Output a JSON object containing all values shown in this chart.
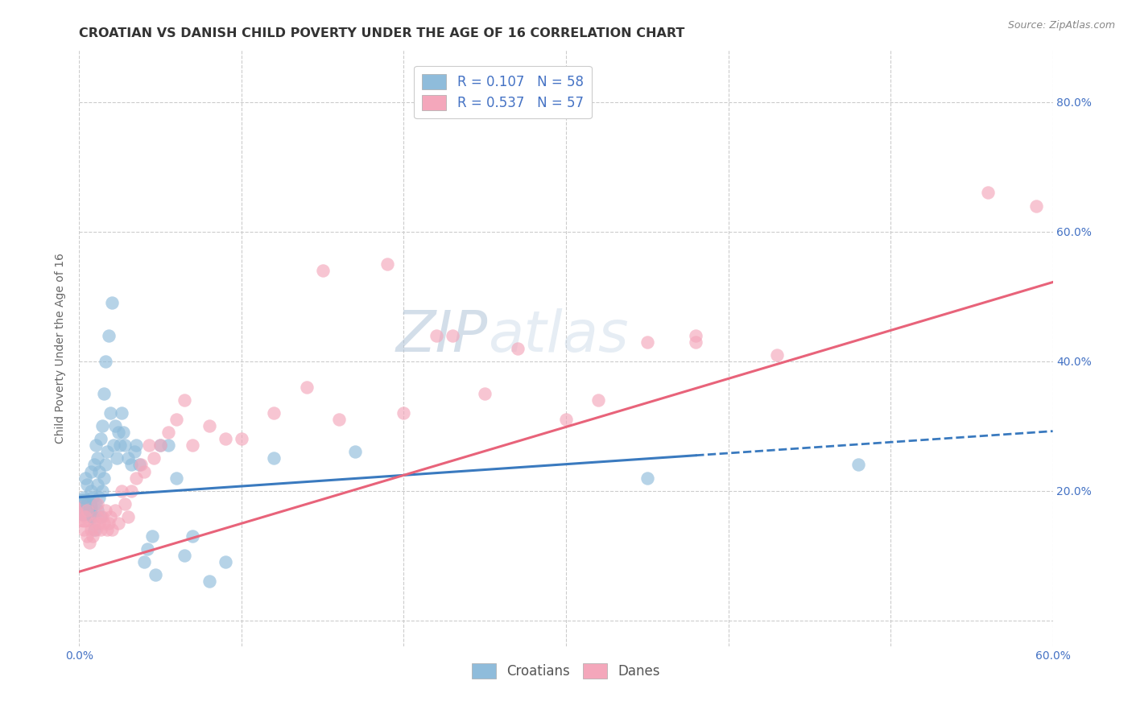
{
  "title": "CROATIAN VS DANISH CHILD POVERTY UNDER THE AGE OF 16 CORRELATION CHART",
  "source": "Source: ZipAtlas.com",
  "ylabel": "Child Poverty Under the Age of 16",
  "xlim": [
    0.0,
    0.6
  ],
  "ylim": [
    -0.04,
    0.88
  ],
  "xticks": [
    0.0,
    0.1,
    0.2,
    0.3,
    0.4,
    0.5,
    0.6
  ],
  "xtick_labels": [
    "0.0%",
    "",
    "",
    "",
    "",
    "",
    "60.0%"
  ],
  "ytick_labels": [
    "",
    "20.0%",
    "40.0%",
    "60.0%",
    "80.0%"
  ],
  "yticks": [
    0.0,
    0.2,
    0.4,
    0.6,
    0.8
  ],
  "legend_label1": "R = 0.107   N = 58",
  "legend_label2": "R = 0.537   N = 57",
  "legend_label3": "Croatians",
  "legend_label4": "Danes",
  "color_blue": "#8fbcdb",
  "color_pink": "#f4a7bb",
  "color_blue_line": "#3a7abf",
  "color_pink_line": "#e8637a",
  "watermark_zip": "ZIP",
  "watermark_atlas": "atlas",
  "R_croatian": 0.107,
  "R_danish": 0.537,
  "N_croatian": 58,
  "N_danish": 57,
  "croatian_x": [
    0.003,
    0.004,
    0.005,
    0.005,
    0.006,
    0.007,
    0.007,
    0.008,
    0.008,
    0.009,
    0.009,
    0.01,
    0.01,
    0.011,
    0.011,
    0.011,
    0.012,
    0.012,
    0.013,
    0.013,
    0.014,
    0.014,
    0.015,
    0.015,
    0.016,
    0.016,
    0.017,
    0.018,
    0.019,
    0.02,
    0.021,
    0.022,
    0.023,
    0.024,
    0.025,
    0.026,
    0.027,
    0.028,
    0.03,
    0.032,
    0.034,
    0.035,
    0.037,
    0.04,
    0.042,
    0.045,
    0.047,
    0.05,
    0.055,
    0.06,
    0.065,
    0.07,
    0.08,
    0.09,
    0.12,
    0.17,
    0.35,
    0.48
  ],
  "croatian_y": [
    0.19,
    0.22,
    0.18,
    0.21,
    0.17,
    0.2,
    0.23,
    0.16,
    0.19,
    0.14,
    0.24,
    0.18,
    0.27,
    0.17,
    0.21,
    0.25,
    0.19,
    0.23,
    0.16,
    0.28,
    0.2,
    0.3,
    0.22,
    0.35,
    0.24,
    0.4,
    0.26,
    0.44,
    0.32,
    0.49,
    0.27,
    0.3,
    0.25,
    0.29,
    0.27,
    0.32,
    0.29,
    0.27,
    0.25,
    0.24,
    0.26,
    0.27,
    0.24,
    0.09,
    0.11,
    0.13,
    0.07,
    0.27,
    0.27,
    0.22,
    0.1,
    0.13,
    0.06,
    0.09,
    0.25,
    0.26,
    0.22,
    0.24
  ],
  "danish_x": [
    0.003,
    0.004,
    0.005,
    0.005,
    0.006,
    0.007,
    0.008,
    0.009,
    0.01,
    0.011,
    0.011,
    0.012,
    0.013,
    0.014,
    0.015,
    0.016,
    0.017,
    0.018,
    0.019,
    0.02,
    0.022,
    0.024,
    0.026,
    0.028,
    0.03,
    0.032,
    0.035,
    0.038,
    0.04,
    0.043,
    0.046,
    0.05,
    0.055,
    0.06,
    0.065,
    0.07,
    0.08,
    0.09,
    0.1,
    0.12,
    0.14,
    0.16,
    0.2,
    0.22,
    0.25,
    0.27,
    0.3,
    0.32,
    0.35,
    0.38,
    0.15,
    0.19,
    0.23,
    0.38,
    0.43,
    0.56,
    0.59
  ],
  "danish_y": [
    0.14,
    0.16,
    0.13,
    0.17,
    0.12,
    0.14,
    0.13,
    0.15,
    0.14,
    0.16,
    0.18,
    0.15,
    0.14,
    0.16,
    0.15,
    0.17,
    0.14,
    0.15,
    0.16,
    0.14,
    0.17,
    0.15,
    0.2,
    0.18,
    0.16,
    0.2,
    0.22,
    0.24,
    0.23,
    0.27,
    0.25,
    0.27,
    0.29,
    0.31,
    0.34,
    0.27,
    0.3,
    0.28,
    0.28,
    0.32,
    0.36,
    0.31,
    0.32,
    0.44,
    0.35,
    0.42,
    0.31,
    0.34,
    0.43,
    0.43,
    0.54,
    0.55,
    0.44,
    0.44,
    0.41,
    0.66,
    0.64
  ],
  "background_color": "#ffffff",
  "grid_color": "#cccccc",
  "title_fontsize": 11.5,
  "axis_label_fontsize": 10,
  "tick_fontsize": 10
}
